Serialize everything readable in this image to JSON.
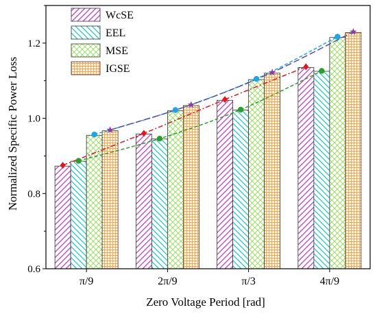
{
  "chart_data": {
    "type": "bar",
    "xlabel": "Zero Voltage Period [rad]",
    "ylabel": "Normalized Specific Power Loss",
    "ylim": [
      0.6,
      1.3
    ],
    "yticks": [
      "0.6",
      "0.8",
      "1.0",
      "1.2"
    ],
    "categories": [
      "π/9",
      "2π/9",
      "π/3",
      "4π/9"
    ],
    "legend_position": "top-left",
    "grid": false,
    "series": [
      {
        "name": "WcSE",
        "values": [
          0.873,
          0.958,
          1.048,
          1.135
        ],
        "color": "#cc33cc",
        "hatch": "diag-right",
        "marker": "diamond",
        "marker_color": "#e8141c",
        "line_style": "dashdot",
        "line_color": "#e8141c"
      },
      {
        "name": "EEL",
        "values": [
          0.886,
          0.945,
          1.022,
          1.125
        ],
        "color": "#2bc2c2",
        "hatch": "diag-left",
        "marker": "circle",
        "marker_color": "#2aa02a",
        "line_style": "dashed",
        "line_color": "#2aa02a"
      },
      {
        "name": "MSE",
        "values": [
          0.955,
          1.02,
          1.103,
          1.215
        ],
        "color": "#8ed850",
        "hatch": "cross",
        "marker": "circle",
        "marker_color": "#1fa5e6",
        "line_style": "dashed",
        "line_color": "#1fa5e6"
      },
      {
        "name": "IGSE",
        "values": [
          0.967,
          1.034,
          1.12,
          1.228
        ],
        "color": "#f0a060",
        "hatch": "grid",
        "marker": "star",
        "marker_color": "#8a3fa8",
        "line_style": "longdash",
        "line_color": "#5a4aa8"
      }
    ],
    "overlay_points": [
      {
        "series": "WcSE",
        "values": [
          0.875,
          0.96,
          1.05,
          1.137
        ]
      },
      {
        "series": "EEL",
        "values": [
          0.887,
          0.946,
          1.023,
          1.126
        ]
      },
      {
        "series": "MSE",
        "values": [
          0.957,
          1.022,
          1.105,
          1.217
        ]
      },
      {
        "series": "IGSE",
        "values": [
          0.969,
          1.036,
          1.122,
          1.23
        ]
      }
    ]
  }
}
